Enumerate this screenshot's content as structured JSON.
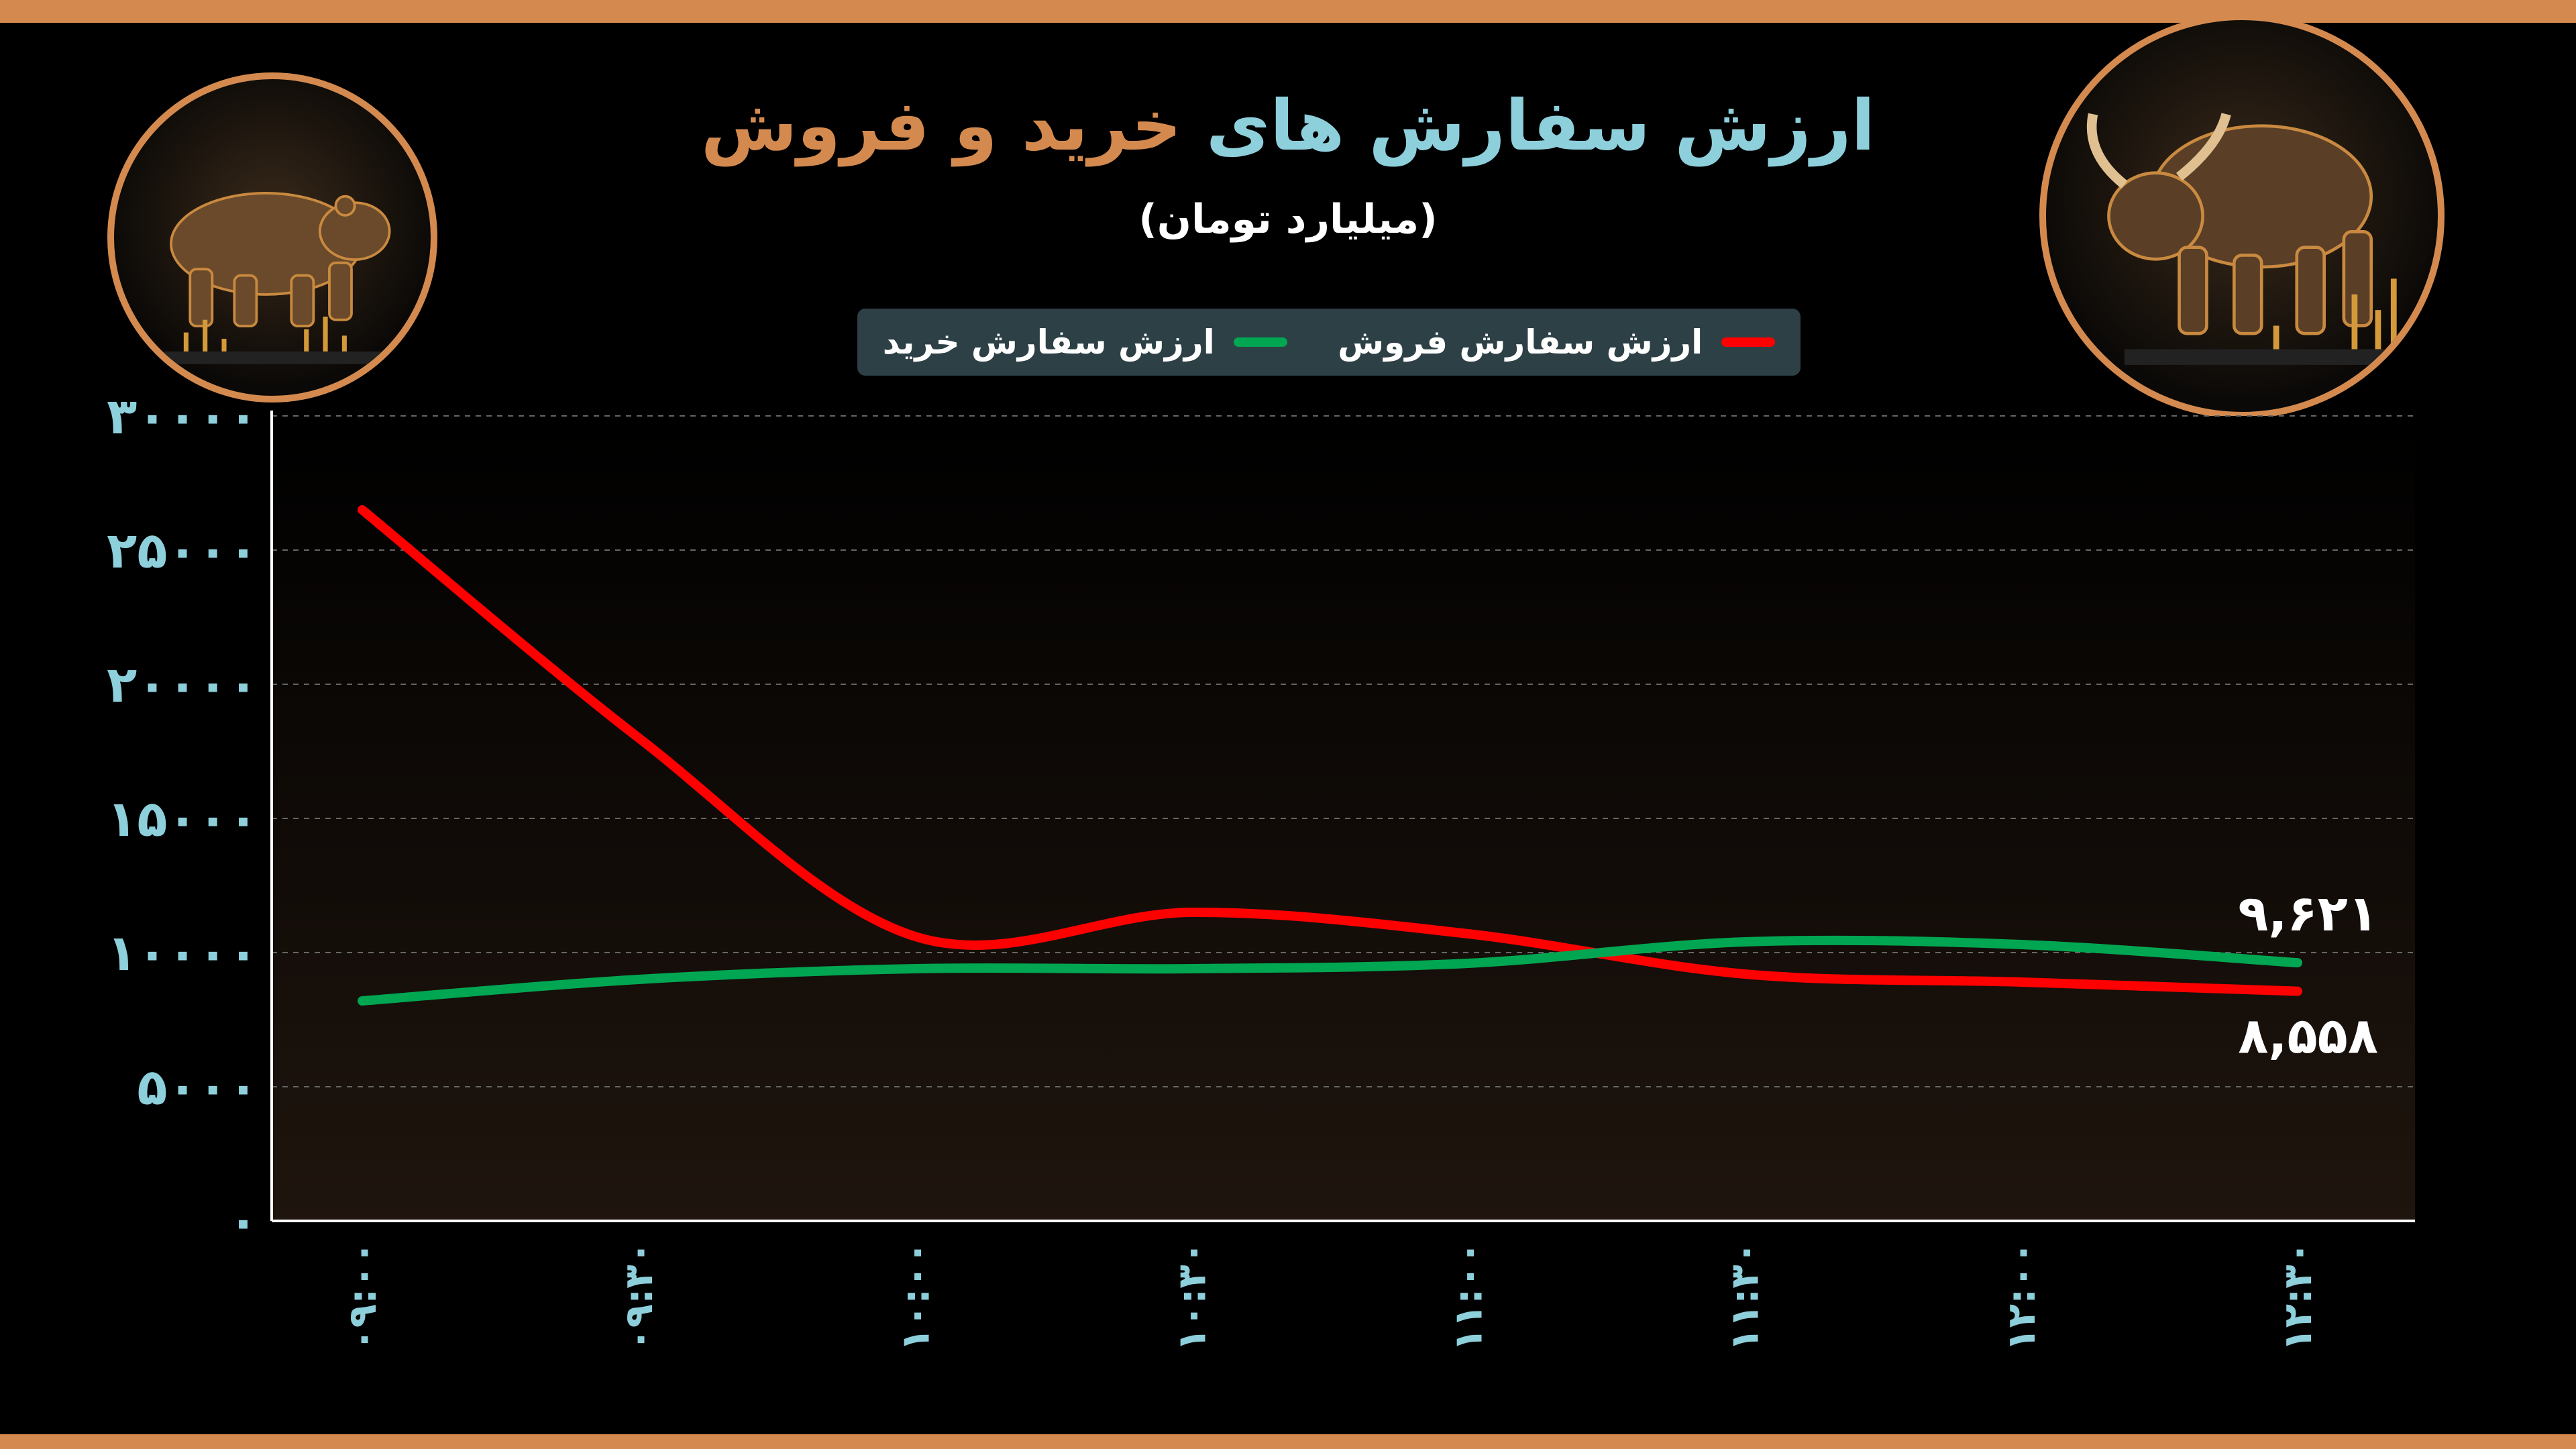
{
  "header": {
    "title_part1": "ارزش سفارش های",
    "title_part2": "خرید و فروش",
    "subtitle": "(میلیارد تومان)"
  },
  "legend": {
    "sell_label": "ارزش سفارش فروش",
    "buy_label": "ارزش سفارش خرید"
  },
  "colors": {
    "sell": "#ff0000",
    "buy": "#00a651",
    "accent": "#d48a4e",
    "title_blue": "#8ecfdc",
    "legend_bg": "#2d4045"
  },
  "chart_data": {
    "type": "line",
    "title": "ارزش سفارش های خرید و فروش",
    "subtitle": "(میلیارد تومان)",
    "categories": [
      "۰۹:۰۰",
      "۰۹:۳۰",
      "۱۰:۰۰",
      "۱۰:۳۰",
      "۱۱:۰۰",
      "۱۱:۳۰",
      "۱۲:۰۰",
      "۱۲:۳۰"
    ],
    "y_ticks": [
      "۰",
      "۵۰۰۰",
      "۱۰۰۰۰",
      "۱۵۰۰۰",
      "۲۰۰۰۰",
      "۲۵۰۰۰",
      "۳۰۰۰۰"
    ],
    "ylim": [
      0,
      30000
    ],
    "grid": true,
    "legend_position": "top-center",
    "series": [
      {
        "name": "ارزش سفارش فروش",
        "color": "#ff0000",
        "values": [
          26500,
          18000,
          10600,
          11500,
          10700,
          9200,
          8900,
          8558
        ],
        "end_label": "۸,۵۵۸"
      },
      {
        "name": "ارزش سفارش خرید",
        "color": "#00a651",
        "values": [
          8200,
          9000,
          9400,
          9400,
          9600,
          10400,
          10300,
          9621
        ],
        "end_label": "۹,۶۲۱"
      }
    ]
  }
}
